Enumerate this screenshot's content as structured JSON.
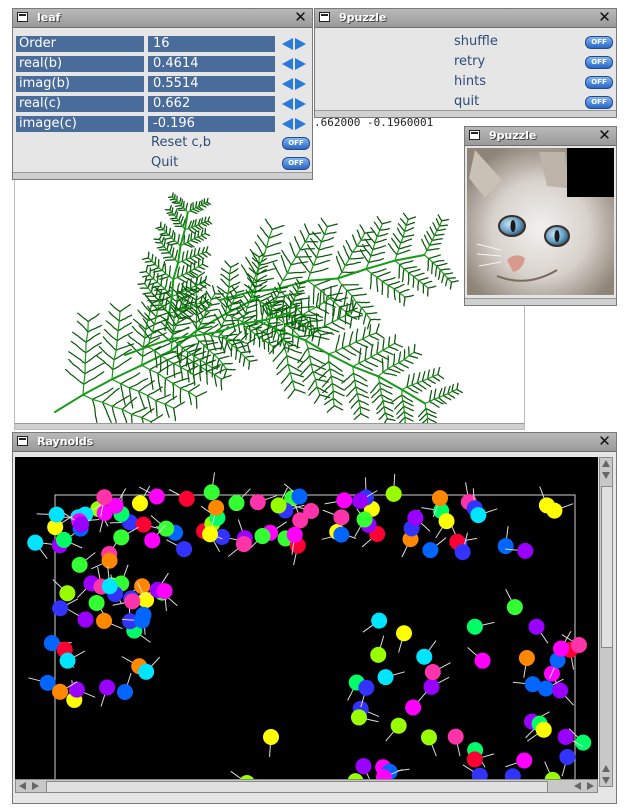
{
  "leaf": {
    "title": "leaf",
    "params": [
      {
        "label": "Order",
        "value": "16"
      },
      {
        "label": "real(b)",
        "value": "0.4614"
      },
      {
        "label": "imag(b)",
        "value": "0.5514"
      },
      {
        "label": "real(c)",
        "value": "0.662"
      },
      {
        "label": "image(c)",
        "value": "-0.196"
      }
    ],
    "reset_label": "Reset c,b",
    "quit_label": "Quit",
    "toggle_label": "OFF",
    "fragment_text": ".662000 -0.1960001",
    "fern_color": "#1a9a1a"
  },
  "puzzle_ctl": {
    "title": "9puzzle",
    "buttons": [
      "shuffle",
      "retry",
      "hints",
      "quit"
    ],
    "toggle_label": "OFF"
  },
  "puzzle_img": {
    "title": "9puzzle"
  },
  "reynolds": {
    "title": "Raynolds",
    "palette": [
      "#ff0033",
      "#ff00ff",
      "#9900ff",
      "#3333ff",
      "#00e5ff",
      "#00ff66",
      "#99ff00",
      "#ffff00",
      "#ff8800",
      "#ff33aa",
      "#33ff33",
      "#0066ff"
    ]
  },
  "colors": {
    "accent": "#4a6c9b",
    "toggle": "#2a66c8"
  }
}
